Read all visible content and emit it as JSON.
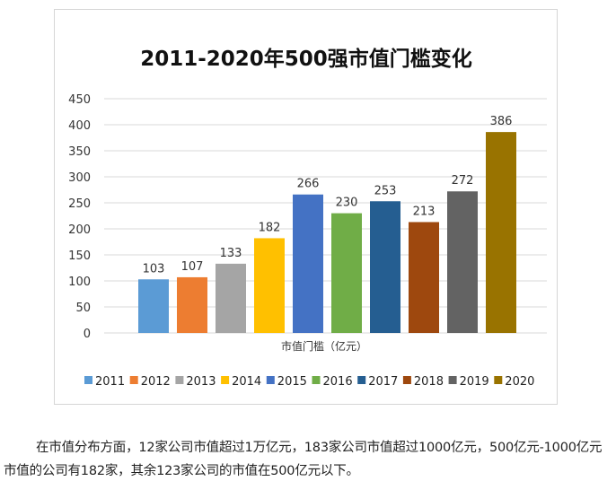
{
  "chart_data": {
    "type": "bar",
    "title": "2011-2020年500强市值门槛变化",
    "xlabel": "市值门槛（亿元）",
    "ylabel": "",
    "ylim": [
      0,
      450
    ],
    "yticks": [
      0,
      50,
      100,
      150,
      200,
      250,
      300,
      350,
      400,
      450
    ],
    "grid": true,
    "legend_position": "bottom",
    "categories": [
      "2011",
      "2012",
      "2013",
      "2014",
      "2015",
      "2016",
      "2017",
      "2018",
      "2019",
      "2020"
    ],
    "values": [
      103,
      107,
      133,
      182,
      266,
      230,
      253,
      213,
      272,
      386
    ],
    "colors": [
      "#5b9bd5",
      "#ed7d31",
      "#a5a5a5",
      "#ffc000",
      "#4472c4",
      "#70ad47",
      "#255e91",
      "#9e480e",
      "#636363",
      "#997300"
    ]
  },
  "caption": "在市值分布方面，12家公司市值超过1万亿元，183家公司市值超过1000亿元，500亿元-1000亿元市值的公司有182家，其余123家公司的市值在500亿元以下。"
}
